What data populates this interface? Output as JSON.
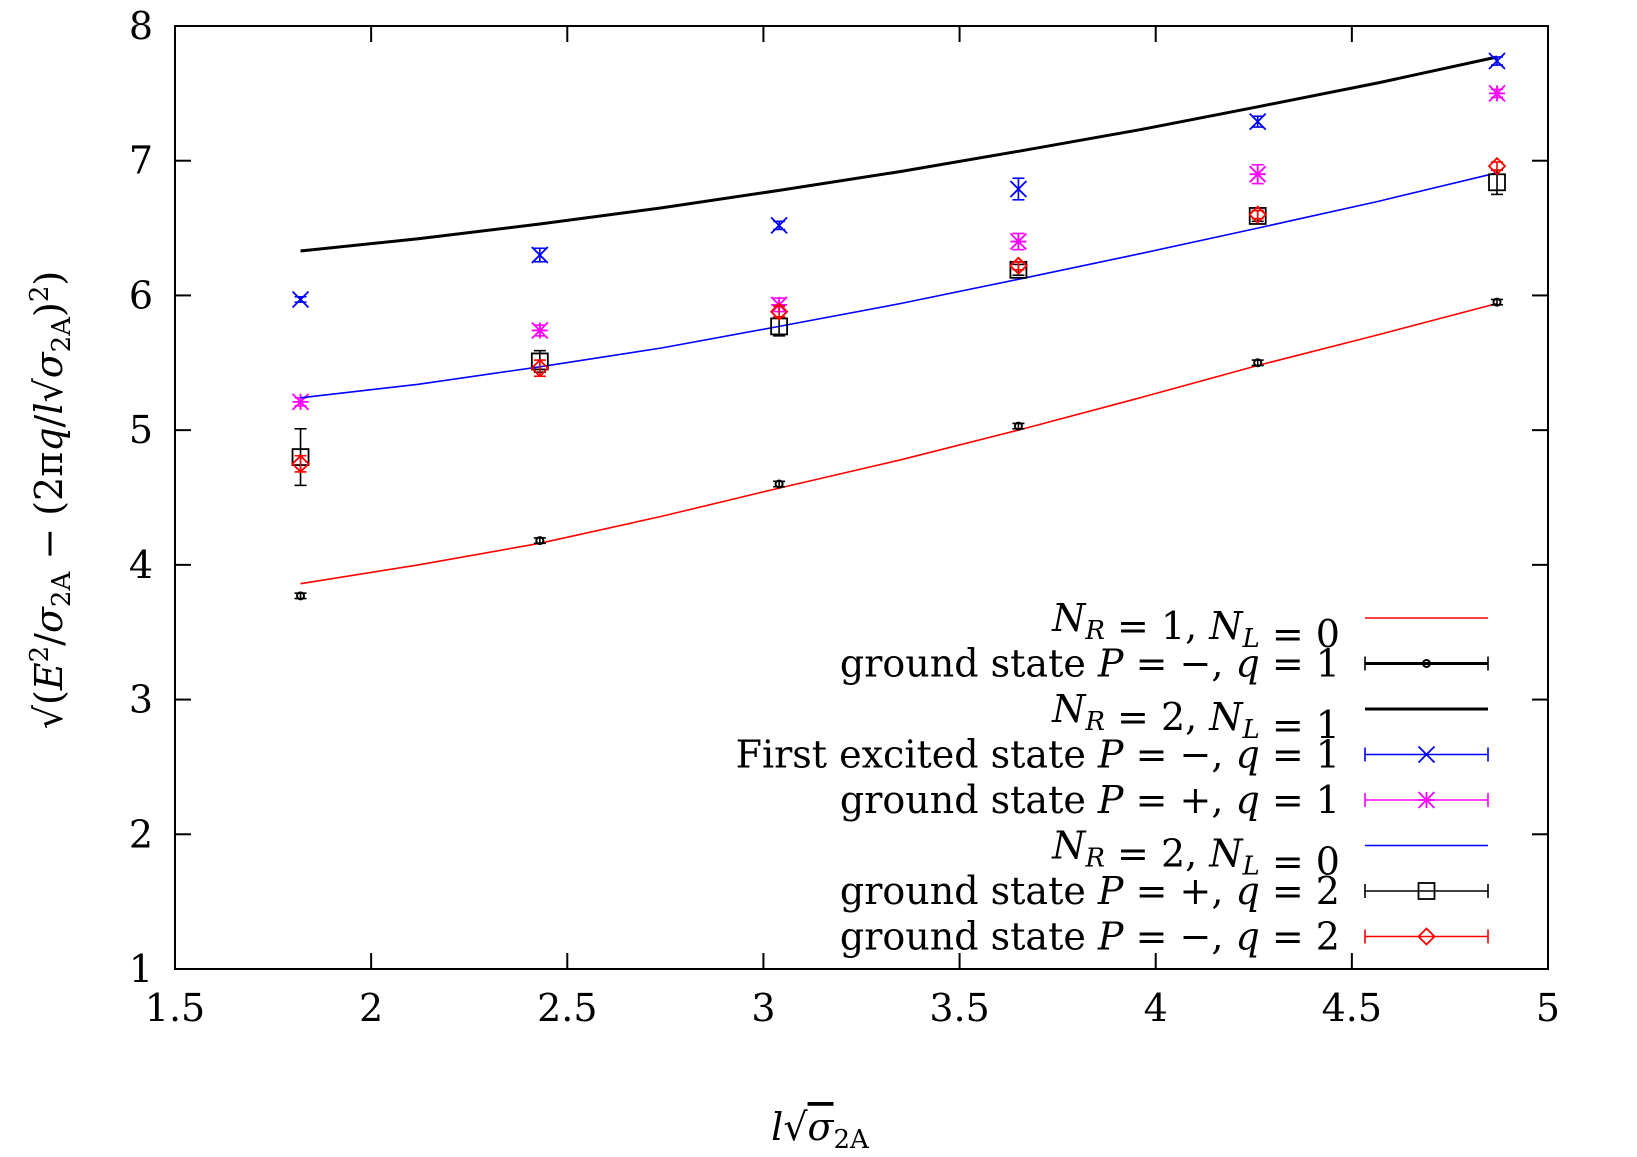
{
  "chart_data": {
    "type": "scatter",
    "xlabel": "l√σ2A",
    "ylabel": "√(E²/σ2A − (2πq/l√σ2A)²)",
    "xlim": [
      1.5,
      5
    ],
    "ylim": [
      1,
      8
    ],
    "xticks": [
      "1.5",
      "2",
      "2.5",
      "3",
      "3.5",
      "4",
      "4.5",
      "5"
    ],
    "yticks": [
      "1",
      "2",
      "3",
      "4",
      "5",
      "6",
      "7",
      "8"
    ],
    "grid": false,
    "legend_position": "bottom-right",
    "series": [
      {
        "name": "N_R = 1, N_L = 0",
        "kind": "curve",
        "color": "#ff0000",
        "x": [
          1.82,
          2.12,
          2.43,
          2.74,
          3.04,
          3.35,
          3.65,
          3.96,
          4.26,
          4.57,
          4.87
        ],
        "y": [
          3.86,
          4.0,
          4.16,
          4.36,
          4.57,
          4.78,
          5.0,
          5.24,
          5.48,
          5.71,
          5.94
        ]
      },
      {
        "name": "ground state P = −, q = 1",
        "kind": "points",
        "color": "#000000",
        "marker": "dot",
        "x": [
          1.82,
          2.43,
          3.04,
          3.65,
          4.26,
          4.87
        ],
        "y": [
          3.77,
          4.18,
          4.6,
          5.03,
          5.5,
          5.95
        ],
        "err": [
          0.02,
          0.02,
          0.02,
          0.02,
          0.02,
          0.02
        ]
      },
      {
        "name": "N_R = 2, N_L = 1",
        "kind": "curve",
        "color": "#000000",
        "x": [
          1.82,
          2.12,
          2.43,
          2.74,
          3.04,
          3.35,
          3.65,
          3.96,
          4.26,
          4.57,
          4.87
        ],
        "y": [
          6.33,
          6.42,
          6.53,
          6.65,
          6.78,
          6.92,
          7.07,
          7.23,
          7.4,
          7.58,
          7.77
        ]
      },
      {
        "name": "First excited state P = −, q = 1",
        "kind": "points",
        "color": "#0000ff",
        "marker": "x",
        "x": [
          1.82,
          2.43,
          3.04,
          3.65,
          4.26,
          4.87
        ],
        "y": [
          5.97,
          6.3,
          6.52,
          6.79,
          7.29,
          7.74
        ],
        "err": [
          0.02,
          0.05,
          0.03,
          0.08,
          0.04,
          0.03
        ]
      },
      {
        "name": "ground state P = +, q = 1",
        "kind": "points",
        "color": "#ff00ff",
        "marker": "star",
        "x": [
          1.82,
          2.43,
          3.04,
          3.65,
          4.26,
          4.87
        ],
        "y": [
          5.21,
          5.74,
          5.93,
          6.4,
          6.9,
          7.5
        ],
        "err": [
          0.03,
          0.04,
          0.05,
          0.06,
          0.07,
          0.03
        ]
      },
      {
        "name": "N_R = 2, N_L = 0",
        "kind": "curve",
        "color": "#0000ff",
        "x": [
          1.82,
          2.12,
          2.43,
          2.74,
          3.04,
          3.35,
          3.65,
          3.96,
          4.26,
          4.57,
          4.87
        ],
        "y": [
          5.24,
          5.34,
          5.47,
          5.61,
          5.77,
          5.94,
          6.12,
          6.31,
          6.5,
          6.7,
          6.91
        ]
      },
      {
        "name": "ground state P = +, q = 2",
        "kind": "points",
        "color": "#000000",
        "marker": "square",
        "x": [
          1.82,
          2.43,
          3.04,
          3.65,
          4.26,
          4.87
        ],
        "y": [
          4.8,
          5.51,
          5.77,
          6.19,
          6.59,
          6.84
        ],
        "err": [
          0.21,
          0.08,
          0.07,
          0.04,
          0.04,
          0.09
        ]
      },
      {
        "name": "ground state P = −, q = 2",
        "kind": "points",
        "color": "#ff0000",
        "marker": "diamond",
        "x": [
          1.82,
          2.43,
          3.04,
          3.65,
          4.26,
          4.87
        ],
        "y": [
          4.75,
          5.46,
          5.88,
          6.22,
          6.6,
          6.96
        ],
        "err": [
          0.06,
          0.06,
          0.04,
          0.03,
          0.03,
          0.03
        ]
      }
    ]
  }
}
